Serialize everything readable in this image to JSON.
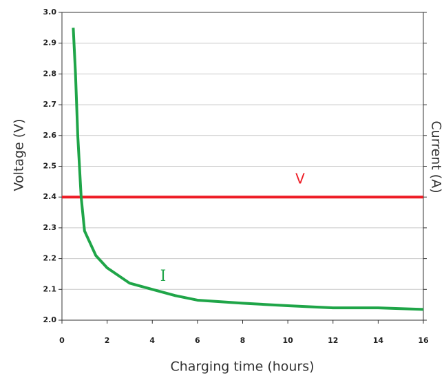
{
  "chart_data": {
    "type": "line",
    "xlabel": "Charging time (hours)",
    "ylabel": "Voltage (V)",
    "y2label": "Current (A)",
    "xlim": [
      0,
      16
    ],
    "xticks": [
      0,
      2,
      4,
      6,
      8,
      10,
      12,
      14,
      16
    ],
    "ylim": [
      2.0,
      3.0
    ],
    "yticks": [
      {
        "value": 2.0,
        "label": "2.0"
      },
      2.1,
      2.2,
      2.3,
      2.4,
      2.5,
      2.6,
      2.7,
      2.8,
      2.9,
      {
        "value": 3.0,
        "label": "3.0"
      }
    ],
    "grid": true,
    "series": [
      {
        "name": "V",
        "color": "#ee1c25",
        "x": [
          0,
          16
        ],
        "values": [
          2.4,
          2.4
        ]
      },
      {
        "name": "I",
        "color": "#1fa548",
        "x": [
          0.5,
          0.6,
          0.7,
          0.85,
          1,
          1.5,
          2,
          3,
          4,
          5,
          6,
          8,
          10,
          12,
          14,
          16
        ],
        "values": [
          2.95,
          2.8,
          2.6,
          2.4,
          2.29,
          2.21,
          2.17,
          2.12,
          2.1,
          2.08,
          2.065,
          2.055,
          2.047,
          2.04,
          2.04,
          2.035
        ]
      }
    ]
  }
}
